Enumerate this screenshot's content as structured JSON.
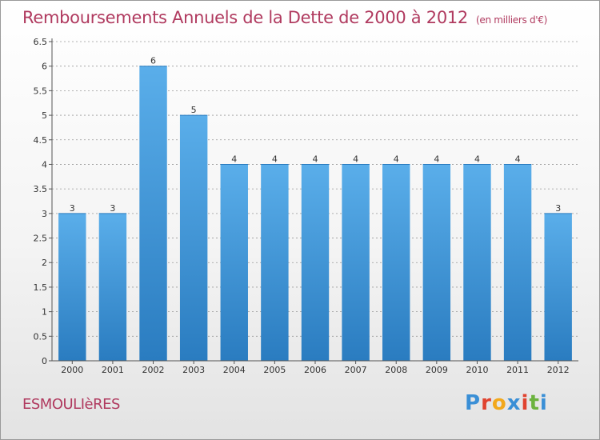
{
  "header": {
    "title": "Remboursements Annuels de la Dette de 2000 à 2012",
    "subtitle": "(en milliers d'€)"
  },
  "footer": {
    "town": "ESMOULIèRES",
    "logo_letters": [
      {
        "ch": "P",
        "color": "#3a8fd6"
      },
      {
        "ch": "r",
        "color": "#e0432f"
      },
      {
        "ch": "o",
        "color": "#f2a81c"
      },
      {
        "ch": "x",
        "color": "#3a8fd6"
      },
      {
        "ch": "i",
        "color": "#e0432f"
      },
      {
        "ch": "t",
        "color": "#6cb33f"
      },
      {
        "ch": "i",
        "color": "#3a8fd6"
      }
    ]
  },
  "colors": {
    "bar_top": "#5aaeea",
    "bar_bottom": "#2a7cc0",
    "axis": "#555555",
    "grid": "#999999"
  },
  "chart_data": {
    "type": "bar",
    "categories": [
      "2000",
      "2001",
      "2002",
      "2003",
      "2004",
      "2005",
      "2006",
      "2007",
      "2008",
      "2009",
      "2010",
      "2011",
      "2012"
    ],
    "values": [
      3,
      3,
      6,
      5,
      4,
      4,
      4,
      4,
      4,
      4,
      4,
      4,
      3
    ],
    "data_labels": [
      "3",
      "3",
      "6",
      "5",
      "4",
      "4",
      "4",
      "4",
      "4",
      "4",
      "4",
      "4",
      "3"
    ],
    "y_ticks": [
      "0",
      "0.5",
      "1",
      "1.5",
      "2",
      "2.5",
      "3",
      "3.5",
      "4",
      "4.5",
      "5",
      "5.5",
      "6",
      "6.5"
    ],
    "ylim": [
      0,
      6.5
    ],
    "grid": true
  }
}
